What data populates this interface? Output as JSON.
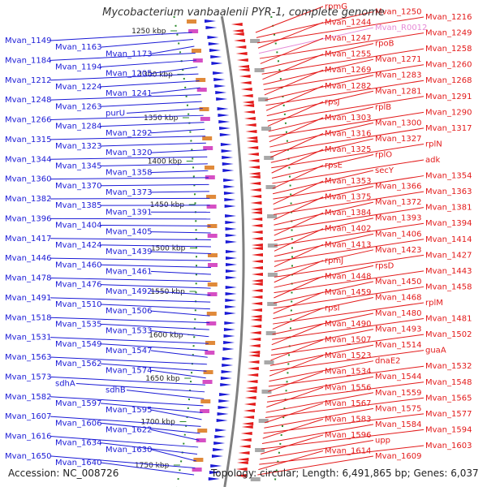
{
  "title": "Mycobacterium vanbaalenii PYR-1, complete genome",
  "footer": {
    "accession": "Accession: NC_008726",
    "stats": "Topology: circular; Length: 6,491,865 bp; Genes: 6,037"
  },
  "colors": {
    "left_genes": "#1a1ad6",
    "right_genes": "#e31a1a",
    "rna_gene": "#e68ad6",
    "scale_line": "#2a8a2a",
    "backbone": "#808080"
  },
  "scale_ticks": [
    "1250 kbp",
    "1300 kbp",
    "1350 kbp",
    "1400 kbp",
    "1450 kbp",
    "1500 kbp",
    "1550 kbp",
    "1600 kbp",
    "1650 kbp",
    "1700 kbp",
    "1750 kbp"
  ],
  "left_labels": [
    "Mvan_1149",
    "Mvan_1163",
    "Mvan_1173",
    "Mvan_1184",
    "Mvan_1194",
    "Mvan_1205",
    "Mvan_1212",
    "Mvan_1224",
    "Mvan_1241",
    "Mvan_1248",
    "Mvan_1263",
    "purU",
    "Mvan_1266",
    "Mvan_1284",
    "Mvan_1292",
    "Mvan_1315",
    "Mvan_1323",
    "Mvan_1320",
    "Mvan_1344",
    "Mvan_1345",
    "Mvan_1358",
    "Mvan_1360",
    "Mvan_1370",
    "Mvan_1373",
    "Mvan_1382",
    "Mvan_1385",
    "Mvan_1391",
    "Mvan_1396",
    "Mvan_1404",
    "Mvan_1405",
    "Mvan_1417",
    "Mvan_1424",
    "Mvan_1439",
    "Mvan_1446",
    "Mvan_1460",
    "Mvan_1461",
    "Mvan_1478",
    "Mvan_1476",
    "Mvan_1492",
    "Mvan_1491",
    "Mvan_1510",
    "Mvan_1506",
    "Mvan_1518",
    "Mvan_1535",
    "Mvan_1533",
    "Mvan_1531",
    "Mvan_1549",
    "Mvan_1547",
    "Mvan_1563",
    "Mvan_1562",
    "Mvan_1574",
    "Mvan_1573",
    "sdhA",
    "sdhB",
    "Mvan_1582",
    "Mvan_1597",
    "Mvan_1595",
    "Mvan_1607",
    "Mvan_1606",
    "Mvan_1622",
    "Mvan_1616",
    "Mvan_1634",
    "Mvan_1630",
    "Mvan_1650",
    "Mvan_1640"
  ],
  "right_labels": [
    "rpmG",
    "Mvan_1250",
    "Mvan_1216",
    "Mvan_1244",
    "Mvan_R0012",
    "Mvan_1249",
    "Mvan_1247",
    "rpoB",
    "Mvan_1258",
    "Mvan_1255",
    "Mvan_1271",
    "Mvan_1260",
    "Mvan_1269",
    "Mvan_1283",
    "Mvan_1268",
    "Mvan_1282",
    "Mvan_1281",
    "Mvan_1291",
    "rpsJ",
    "rplB",
    "Mvan_1290",
    "Mvan_1303",
    "Mvan_1300",
    "Mvan_1317",
    "Mvan_1316",
    "Mvan_1327",
    "rplN",
    "Mvan_1325",
    "rplO",
    "adk",
    "rpsE",
    "secY",
    "Mvan_1354",
    "Mvan_1353",
    "Mvan_1366",
    "Mvan_1363",
    "Mvan_1375",
    "Mvan_1372",
    "Mvan_1381",
    "Mvan_1384",
    "Mvan_1393",
    "Mvan_1394",
    "Mvan_1402",
    "Mvan_1406",
    "Mvan_1414",
    "Mvan_1413",
    "Mvan_1423",
    "Mvan_1427",
    "rpmJ",
    "rpsD",
    "Mvan_1443",
    "Mvan_1448",
    "Mvan_1450",
    "Mvan_1458",
    "Mvan_1459",
    "Mvan_1468",
    "rplM",
    "rpsI",
    "Mvan_1480",
    "Mvan_1481",
    "Mvan_1490",
    "Mvan_1493",
    "Mvan_1502",
    "Mvan_1507",
    "Mvan_1514",
    "guaA",
    "Mvan_1523",
    "dnaE2",
    "Mvan_1532",
    "Mvan_1534",
    "Mvan_1544",
    "Mvan_1548",
    "Mvan_1556",
    "Mvan_1559",
    "Mvan_1565",
    "Mvan_1567",
    "Mvan_1575",
    "Mvan_1577",
    "Mvan_1583",
    "Mvan_1584",
    "Mvan_1594",
    "Mvan_1596",
    "upp",
    "Mvan_1603",
    "Mvan_1614",
    "Mvan_1609"
  ]
}
